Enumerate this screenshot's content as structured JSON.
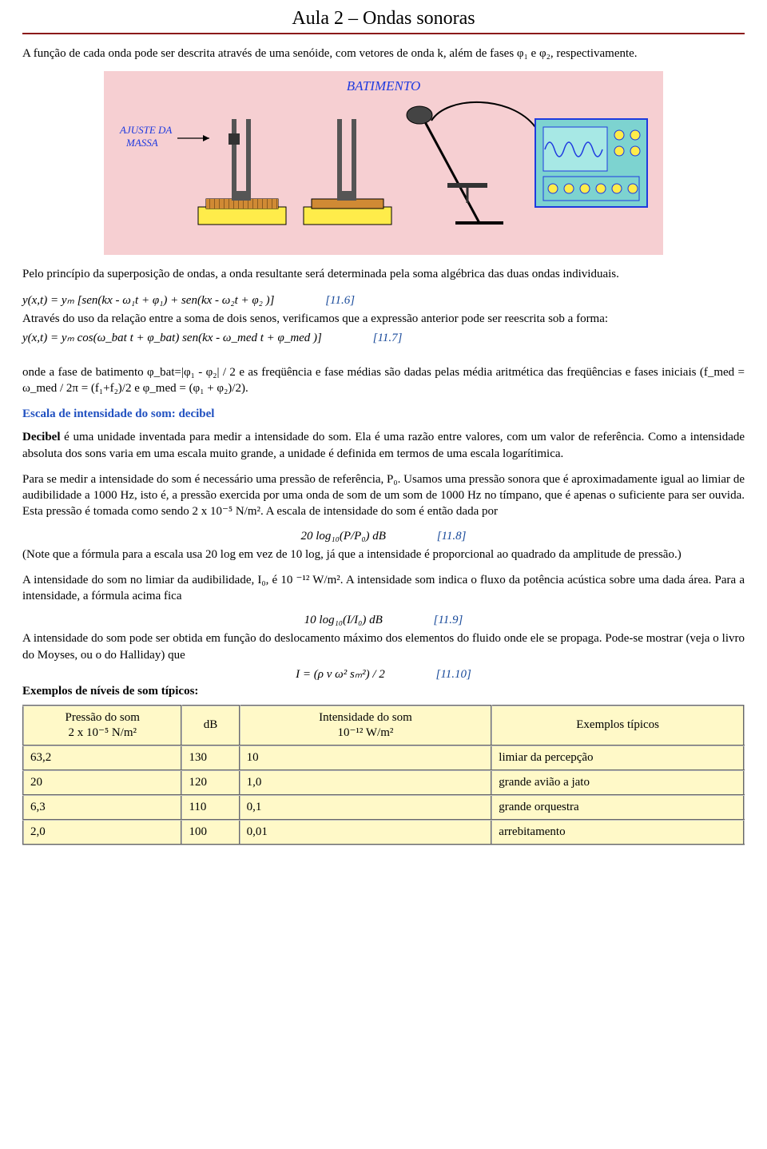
{
  "header": {
    "title": "Aula 2 – Ondas sonoras"
  },
  "p1": "A função de cada onda pode ser descrita através de uma senóide, com vetores de onda k, além de fases φ₁ e φ₂, respectivamente.",
  "figure": {
    "title": "BATIMENTO",
    "annotation": "AJUSTE DA\nMASSA",
    "bgcolor": "#f6cfd2",
    "title_color": "#1f3adf",
    "annot_color": "#1f3adf",
    "box_fill": "#ffec4a",
    "tray_fill": "#d08a34",
    "stripe_fill": "#eeeeee",
    "mic_fill": "#555555",
    "osc_fill": "#7dd3d0",
    "osc_border": "#1f3adf",
    "wire": "#000000"
  },
  "p2": "Pelo princípio da superposição de ondas, a onda resultante será determinada pela soma algébrica das duas ondas individuais.",
  "eq1": {
    "lhs": "y(x,t) =  yₘ [sen(kx - ω₁t + φ₁) + sen(kx - ω₂t + φ₂ )]",
    "num": "[11.6]"
  },
  "p3": "Através do uso da relação entre a soma de dois senos, verificamos que a expressão anterior pode ser reescrita sob a forma:",
  "eq2": {
    "lhs": "y(x,t) =  yₘ  cos(ω_bat t + φ_bat) sen(kx - ω_med t + φ_med )]",
    "num": "[11.7]"
  },
  "p4": "onde a fase de batimento φ_bat=|φ₁ - φ₂| / 2 e as freqüência e fase médias são dadas pelas média aritmética das freqüências e  fases iniciais (f_med = ω_med / 2π = (f₁+f₂)/2 e φ_med = (φ₁ + φ₂)/2).",
  "h_blue": "Escala de intensidade do som: decibel",
  "p5": "Decibel é uma unidade inventada para medir a intensidade do som. Ela é uma razão entre valores, com um valor de referência. Como a intensidade absoluta dos sons varia em uma escala muito grande, a unidade é definida em termos de uma escala logarítimica.",
  "p6": "Para se medir a intensidade do som é necessário uma pressão de referência, P₀. Usamos uma pressão sonora que é aproximadamente igual ao limiar de audibilidade a 1000 Hz, isto é, a pressão exercida por uma onda de som de um som de 1000 Hz no tímpano, que é apenas o suficiente para ser ouvida. Esta pressão é tomada como sendo 2 x 10⁻⁵ N/m².  A escala de intensidade do som é então dada por",
  "eq3": {
    "lhs": "20 log₁₀(P/P₀)   dB",
    "num": "[11.8]"
  },
  "p7": "(Note que a fórmula para a escala usa  20 log em vez de 10 log, já que a intensidade é proporcional  ao quadrado da amplitude de pressão.)",
  "p8": "A intensidade do som no limiar da audibilidade, I₀, é 10 ⁻¹² W/m². A intensidade som indica o fluxo da potência acústica sobre uma dada área. Para a intensidade, a fórmula acima fica",
  "eq4": {
    "lhs": "10 log₁₀(I/I₀)   dB",
    "num": "[11.9]"
  },
  "p9": "A intensidade do som pode ser obtida em função do deslocamento máximo dos elementos do fluido onde ele se propaga. Pode-se mostrar (veja o livro do Moyses, ou o do Halliday) que",
  "eq5": {
    "lhs": "I = (ρ v ω² sₘ²) / 2",
    "num": "[11.10]"
  },
  "p10": "Exemplos de níveis de som típicos:",
  "p_decibel_bold": "Decibel",
  "table": {
    "bgcolor": "#fff9c8",
    "columns": [
      {
        "h1": "Pressão do som",
        "h2": "2 x 10⁻⁵ N/m²",
        "width": "22%"
      },
      {
        "h1": "dB",
        "h2": "",
        "width": "8%"
      },
      {
        "h1": "Intensidade do som",
        "h2": "10⁻¹² W/m²",
        "width": "35%"
      },
      {
        "h1": "Exemplos típicos",
        "h2": "",
        "width": "35%"
      }
    ],
    "rows": [
      [
        "63,2",
        "130",
        "10",
        "limiar da percepção"
      ],
      [
        "20",
        "120",
        "1,0",
        "grande avião a jato"
      ],
      [
        "6,3",
        "110",
        "0,1",
        "grande orquestra"
      ],
      [
        "2,0",
        "100",
        "0,01",
        "arrebitamento"
      ]
    ]
  }
}
